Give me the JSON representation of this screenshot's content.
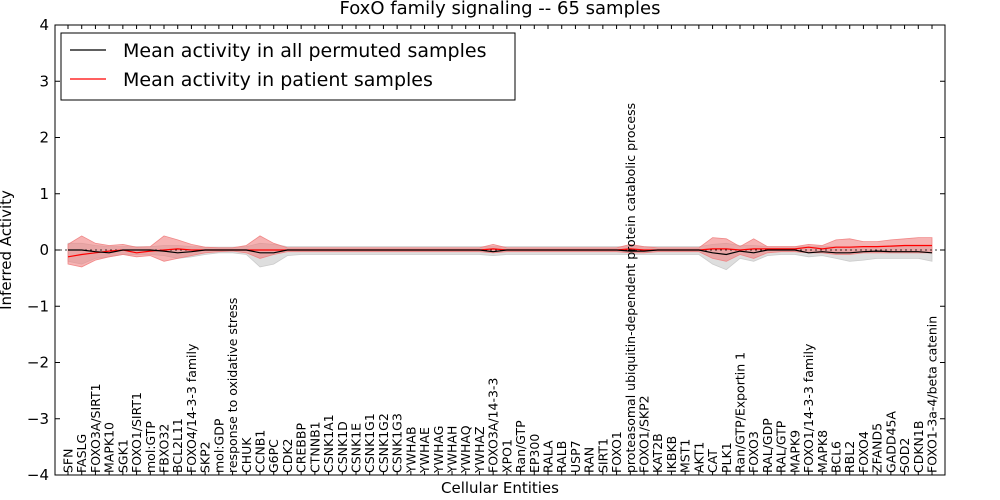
{
  "chart_data": {
    "type": "line",
    "title": "FoxO family signaling -- 65 samples",
    "xlabel": "Cellular Entities",
    "ylabel": "Inferred Activity",
    "ylim": [
      -4,
      4
    ],
    "yticks": [
      "4",
      "3",
      "2",
      "1",
      "0",
      "−1",
      "−2",
      "−3",
      "−4"
    ],
    "grid": false,
    "legend_position": "top-left",
    "colors": {
      "permuted": "#000000",
      "patient": "#ff0000",
      "permuted_band": "#c8c8c8",
      "patient_band": "#f08080"
    },
    "legend": [
      "Mean activity in all permuted samples",
      "Mean activity in patient samples"
    ],
    "categories": [
      "SFN",
      "FASLG",
      "FOXO3A/SIRT1",
      "MAPK10",
      "SGK1",
      "FOXO1/SIRT1",
      "mol:GTP",
      "FBXO32",
      "BCL2L11",
      "FOXO4/14-3-3 family",
      "SKP2",
      "mol:GDP",
      "response to oxidative stress",
      "CHUK",
      "CCNB1",
      "G6PC",
      "CDK2",
      "CREBBP",
      "CTNNB1",
      "CSNK1A1",
      "CSNK1D",
      "CSNK1E",
      "CSNK1G1",
      "CSNK1G2",
      "CSNK1G3",
      "YWHAB",
      "YWHAE",
      "YWHAG",
      "YWHAH",
      "YWHAQ",
      "YWHAZ",
      "FOXO3A/14-3-3",
      "XPO1",
      "Ran/GTP",
      "EP300",
      "RALA",
      "RALB",
      "USP7",
      "RAN",
      "SIRT1",
      "FOXO1",
      "proteasomal ubiquitin-dependent protein catabolic process",
      "FOXO1/SKP2",
      "KAT2B",
      "IKBKB",
      "MST1",
      "AKT1",
      "CAT",
      "PLK1",
      "Ran/GTP/Exportin 1",
      "FOXO3",
      "RAL/GDP",
      "RAL/GTP",
      "MAPK9",
      "FOXO1/14-3-3 family",
      "MAPK8",
      "BCL6",
      "RBL2",
      "FOXO4",
      "ZFAND5",
      "GADD45A",
      "SOD2",
      "CDKN1B",
      "FOXO1-3a-4/beta catenin"
    ],
    "series": [
      {
        "name": "Mean activity in all permuted samples",
        "values": [
          0.0,
          0.0,
          -0.03,
          -0.05,
          0.0,
          0.0,
          0.0,
          -0.02,
          -0.05,
          -0.03,
          0.0,
          0.0,
          0.0,
          0.0,
          -0.05,
          -0.05,
          0.0,
          0.0,
          0.0,
          0.0,
          0.0,
          0.0,
          0.0,
          0.0,
          0.0,
          0.0,
          0.0,
          0.0,
          0.0,
          0.0,
          0.0,
          -0.03,
          0.0,
          0.0,
          0.0,
          0.0,
          0.0,
          0.0,
          0.0,
          0.0,
          0.0,
          -0.02,
          -0.02,
          0.0,
          0.0,
          0.0,
          0.0,
          -0.05,
          -0.08,
          -0.02,
          -0.05,
          0.0,
          0.0,
          0.0,
          -0.05,
          -0.03,
          -0.05,
          -0.05,
          -0.03,
          -0.02,
          -0.03,
          -0.03,
          -0.03,
          -0.05
        ],
        "band_low": [
          -0.2,
          -0.25,
          -0.15,
          -0.12,
          -0.08,
          -0.08,
          -0.08,
          -0.1,
          -0.15,
          -0.12,
          -0.08,
          -0.05,
          -0.05,
          -0.08,
          -0.3,
          -0.25,
          -0.1,
          -0.08,
          -0.08,
          -0.08,
          -0.08,
          -0.08,
          -0.08,
          -0.08,
          -0.08,
          -0.08,
          -0.08,
          -0.08,
          -0.08,
          -0.08,
          -0.08,
          -0.1,
          -0.08,
          -0.08,
          -0.08,
          -0.08,
          -0.08,
          -0.08,
          -0.08,
          -0.08,
          -0.08,
          -0.08,
          -0.08,
          -0.08,
          -0.08,
          -0.08,
          -0.08,
          -0.25,
          -0.35,
          -0.15,
          -0.2,
          -0.1,
          -0.08,
          -0.08,
          -0.12,
          -0.1,
          -0.15,
          -0.2,
          -0.18,
          -0.15,
          -0.15,
          -0.15,
          -0.15,
          -0.2
        ],
        "band_high": [
          0.12,
          0.12,
          0.08,
          0.06,
          0.06,
          0.06,
          0.06,
          0.08,
          0.08,
          0.06,
          0.05,
          0.05,
          0.05,
          0.06,
          0.12,
          0.1,
          0.06,
          0.06,
          0.06,
          0.06,
          0.06,
          0.06,
          0.06,
          0.06,
          0.06,
          0.06,
          0.06,
          0.06,
          0.06,
          0.06,
          0.06,
          0.06,
          0.06,
          0.06,
          0.06,
          0.06,
          0.06,
          0.06,
          0.06,
          0.06,
          0.06,
          0.06,
          0.06,
          0.06,
          0.06,
          0.06,
          0.06,
          0.1,
          0.12,
          0.08,
          0.08,
          0.06,
          0.06,
          0.06,
          0.06,
          0.06,
          0.06,
          0.06,
          0.06,
          0.06,
          0.06,
          0.06,
          0.06,
          0.06
        ]
      },
      {
        "name": "Mean activity in patient samples",
        "values": [
          -0.12,
          -0.08,
          -0.05,
          -0.02,
          0.0,
          -0.05,
          -0.02,
          0.0,
          0.02,
          0.0,
          0.0,
          0.0,
          0.0,
          0.0,
          0.0,
          0.0,
          0.0,
          0.0,
          0.0,
          0.0,
          0.0,
          0.0,
          0.0,
          0.0,
          0.0,
          0.0,
          0.0,
          0.0,
          0.0,
          0.0,
          0.0,
          0.02,
          0.0,
          0.0,
          0.0,
          0.0,
          0.0,
          0.0,
          0.0,
          0.0,
          0.0,
          0.02,
          0.0,
          0.0,
          0.0,
          0.0,
          0.0,
          0.02,
          0.02,
          0.0,
          0.02,
          0.02,
          0.02,
          0.02,
          0.05,
          0.02,
          0.05,
          0.05,
          0.06,
          0.06,
          0.07,
          0.08,
          0.08,
          0.08
        ],
        "band_low": [
          -0.25,
          -0.3,
          -0.18,
          -0.12,
          -0.08,
          -0.12,
          -0.1,
          -0.2,
          -0.15,
          -0.1,
          -0.05,
          -0.03,
          -0.02,
          -0.05,
          -0.15,
          -0.08,
          -0.03,
          -0.03,
          -0.03,
          -0.03,
          -0.03,
          -0.03,
          -0.03,
          -0.03,
          -0.03,
          -0.03,
          -0.03,
          -0.03,
          -0.03,
          -0.03,
          -0.03,
          -0.05,
          -0.03,
          -0.03,
          -0.03,
          -0.03,
          -0.03,
          -0.03,
          -0.03,
          -0.03,
          -0.03,
          -0.05,
          -0.05,
          -0.03,
          -0.03,
          -0.03,
          -0.03,
          -0.15,
          -0.2,
          -0.08,
          -0.15,
          -0.05,
          -0.03,
          -0.03,
          -0.05,
          -0.05,
          -0.08,
          -0.08,
          -0.05,
          -0.05,
          -0.05,
          -0.05,
          -0.05,
          -0.05
        ],
        "band_high": [
          0.1,
          0.25,
          0.12,
          0.08,
          0.1,
          0.05,
          0.06,
          0.25,
          0.18,
          0.1,
          0.05,
          0.04,
          0.04,
          0.08,
          0.25,
          0.12,
          0.04,
          0.04,
          0.04,
          0.04,
          0.04,
          0.04,
          0.04,
          0.04,
          0.04,
          0.04,
          0.04,
          0.04,
          0.04,
          0.04,
          0.04,
          0.1,
          0.04,
          0.04,
          0.04,
          0.04,
          0.04,
          0.04,
          0.04,
          0.04,
          0.04,
          0.1,
          0.06,
          0.04,
          0.04,
          0.04,
          0.04,
          0.22,
          0.2,
          0.06,
          0.2,
          0.06,
          0.06,
          0.06,
          0.1,
          0.08,
          0.18,
          0.2,
          0.15,
          0.15,
          0.18,
          0.2,
          0.22,
          0.22
        ]
      }
    ]
  }
}
